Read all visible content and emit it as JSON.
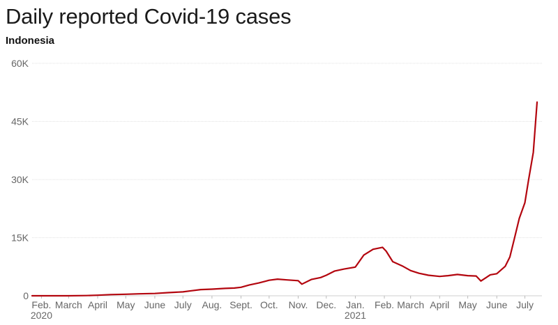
{
  "header": {
    "title": "Daily reported Covid-19 cases",
    "subtitle": "Indonesia"
  },
  "chart_data": {
    "type": "line",
    "title": "Daily reported Covid-19 cases",
    "subtitle": "Indonesia",
    "xlabel": "",
    "ylabel": "",
    "ylim": [
      0,
      60000
    ],
    "y_ticks": [
      0,
      15000,
      30000,
      45000,
      60000
    ],
    "y_tick_labels": [
      "0",
      "15K",
      "30K",
      "45K",
      "60K"
    ],
    "x_range": [
      "2020-01-22",
      "2021-07-14"
    ],
    "x_tick_labels": [
      {
        "date": "2020-02-01",
        "label": "Feb."
      },
      {
        "date": "2020-03-01",
        "label": "March"
      },
      {
        "date": "2020-04-01",
        "label": "April"
      },
      {
        "date": "2020-05-01",
        "label": "May"
      },
      {
        "date": "2020-06-01",
        "label": "June"
      },
      {
        "date": "2020-07-01",
        "label": "July"
      },
      {
        "date": "2020-08-01",
        "label": "Aug."
      },
      {
        "date": "2020-09-01",
        "label": "Sept."
      },
      {
        "date": "2020-10-01",
        "label": "Oct."
      },
      {
        "date": "2020-11-01",
        "label": "Nov."
      },
      {
        "date": "2020-12-01",
        "label": "Dec."
      },
      {
        "date": "2021-01-01",
        "label": "Jan."
      },
      {
        "date": "2021-02-01",
        "label": "Feb."
      },
      {
        "date": "2021-03-01",
        "label": "March"
      },
      {
        "date": "2021-04-01",
        "label": "April"
      },
      {
        "date": "2021-05-01",
        "label": "May"
      },
      {
        "date": "2021-06-01",
        "label": "June"
      },
      {
        "date": "2021-07-01",
        "label": "July"
      }
    ],
    "year_labels": [
      {
        "date": "2020-02-01",
        "label": "2020"
      },
      {
        "date": "2021-01-01",
        "label": "2021"
      }
    ],
    "grid": true,
    "line_color": "#b3050e",
    "series": [
      {
        "x": [
          "2020-01-22",
          "2020-02-15",
          "2020-03-01",
          "2020-03-20",
          "2020-04-01",
          "2020-04-15",
          "2020-05-01",
          "2020-05-15",
          "2020-06-01",
          "2020-06-15",
          "2020-07-01",
          "2020-07-10",
          "2020-07-20",
          "2020-08-01",
          "2020-08-15",
          "2020-08-25",
          "2020-09-01",
          "2020-09-10",
          "2020-09-20",
          "2020-10-01",
          "2020-10-10",
          "2020-10-20",
          "2020-11-01",
          "2020-11-05",
          "2020-11-15",
          "2020-11-25",
          "2020-12-01",
          "2020-12-10",
          "2020-12-20",
          "2021-01-01",
          "2021-01-10",
          "2021-01-20",
          "2021-01-30",
          "2021-02-03",
          "2021-02-10",
          "2021-02-20",
          "2021-03-01",
          "2021-03-10",
          "2021-03-20",
          "2021-04-01",
          "2021-04-10",
          "2021-04-20",
          "2021-05-01",
          "2021-05-10",
          "2021-05-15",
          "2021-05-20",
          "2021-05-25",
          "2021-06-01",
          "2021-06-10",
          "2021-06-15",
          "2021-06-20",
          "2021-06-25",
          "2021-07-01",
          "2021-07-05",
          "2021-07-10",
          "2021-07-14"
        ],
        "values": [
          0,
          0,
          0,
          50,
          150,
          300,
          400,
          500,
          600,
          800,
          1000,
          1300,
          1600,
          1700,
          1900,
          2000,
          2200,
          2800,
          3300,
          4000,
          4300,
          4100,
          3900,
          3000,
          4200,
          4700,
          5300,
          6400,
          6900,
          7400,
          10500,
          12000,
          12500,
          11500,
          8800,
          7700,
          6500,
          5800,
          5300,
          5000,
          5200,
          5500,
          5200,
          5100,
          3800,
          4600,
          5400,
          5700,
          7600,
          10000,
          15000,
          20000,
          24000,
          30000,
          37000,
          50000
        ]
      }
    ]
  }
}
